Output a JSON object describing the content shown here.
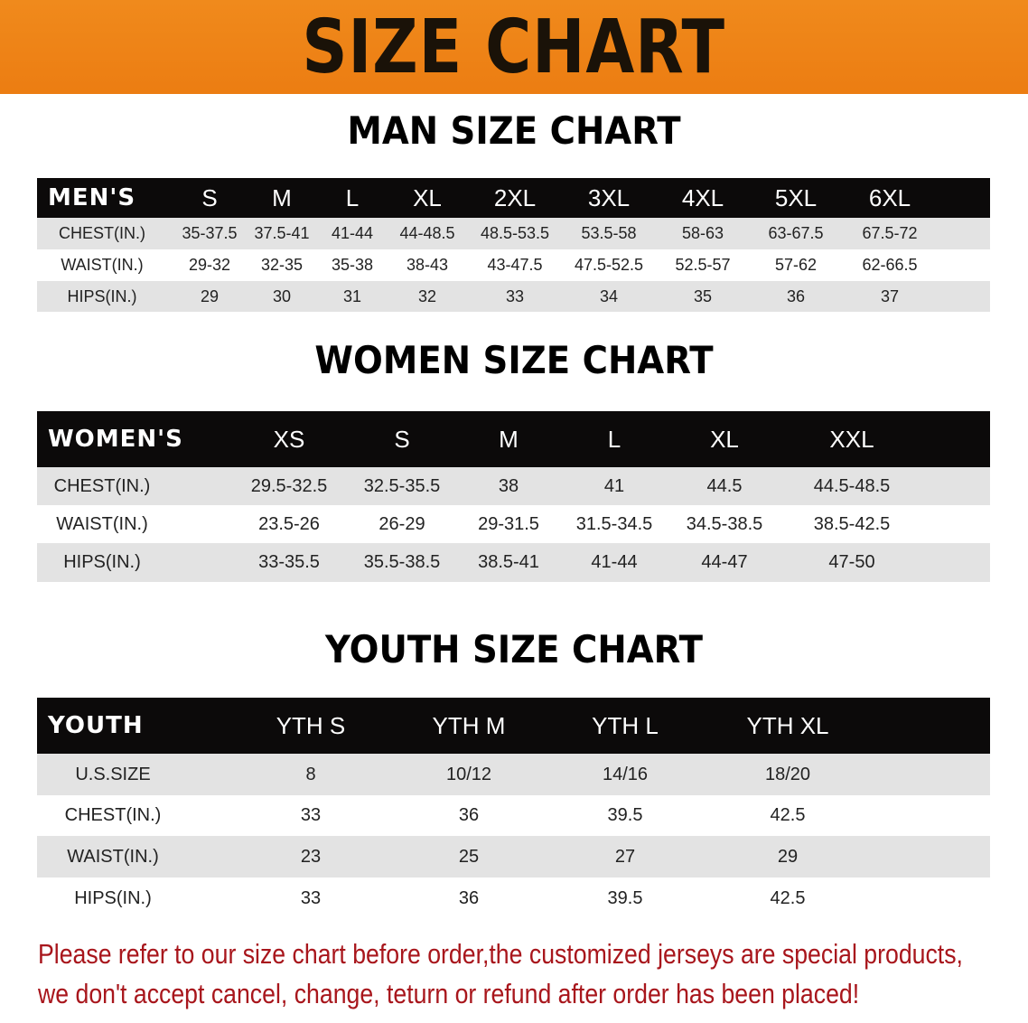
{
  "banner_title": "SIZE CHART",
  "colors": {
    "banner": "#ec7d12",
    "header_row": "#0c0a0a",
    "stripe": "#e3e3e3",
    "note": "#a8161c"
  },
  "men": {
    "title": "MAN SIZE CHART",
    "header": [
      "MEN'S",
      "S",
      "M",
      "L",
      "XL",
      "2XL",
      "3XL",
      "4XL",
      "5XL",
      "6XL"
    ],
    "rows": [
      [
        "CHEST(IN.)",
        "35-37.5",
        "37.5-41",
        "41-44",
        "44-48.5",
        "48.5-53.5",
        "53.5-58",
        "58-63",
        "63-67.5",
        "67.5-72"
      ],
      [
        "WAIST(IN.)",
        "29-32",
        "32-35",
        "35-38",
        "38-43",
        "43-47.5",
        "47.5-52.5",
        "52.5-57",
        "57-62",
        "62-66.5"
      ],
      [
        "HIPS(IN.)",
        "29",
        "30",
        "31",
        "32",
        "33",
        "34",
        "35",
        "36",
        "37"
      ]
    ]
  },
  "women": {
    "title": "WOMEN SIZE CHART",
    "header": [
      "WOMEN'S",
      "XS",
      "S",
      "M",
      "L",
      "XL",
      "XXL"
    ],
    "rows": [
      [
        "CHEST(IN.)",
        "29.5-32.5",
        "32.5-35.5",
        "38",
        "41",
        "44.5",
        "44.5-48.5"
      ],
      [
        "WAIST(IN.)",
        "23.5-26",
        "26-29",
        "29-31.5",
        "31.5-34.5",
        "34.5-38.5",
        "38.5-42.5"
      ],
      [
        "HIPS(IN.)",
        "33-35.5",
        "35.5-38.5",
        "38.5-41",
        "41-44",
        "44-47",
        "47-50"
      ]
    ]
  },
  "youth": {
    "title": "YOUTH SIZE CHART",
    "header": [
      "YOUTH",
      "YTH S",
      "YTH M",
      "YTH L",
      "YTH XL"
    ],
    "rows": [
      [
        "U.S.SIZE",
        "8",
        "10/12",
        "14/16",
        "18/20"
      ],
      [
        "CHEST(IN.)",
        "33",
        "36",
        "39.5",
        "42.5"
      ],
      [
        "WAIST(IN.)",
        "23",
        "25",
        "27",
        "29"
      ],
      [
        "HIPS(IN.)",
        "33",
        "36",
        "39.5",
        "42.5"
      ]
    ]
  },
  "note": {
    "line1": "Please refer to our size chart before order,the customized jerseys are special products,",
    "line2": "we don't accept cancel, change, teturn or refund after order has been placed!"
  }
}
